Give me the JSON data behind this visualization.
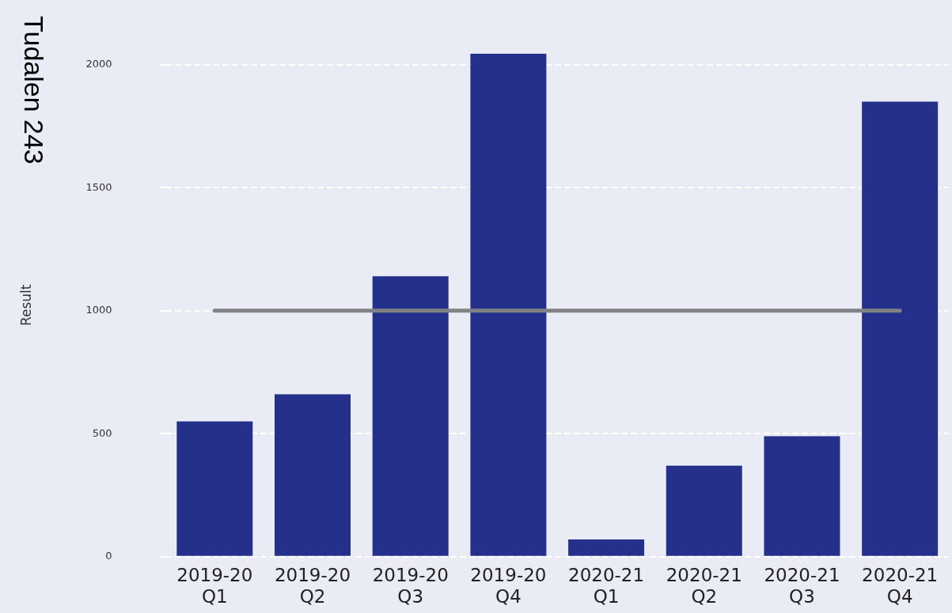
{
  "chart_data": {
    "type": "bar",
    "ylabel": "Result",
    "categories": [
      "2019-20 Q1",
      "2019-20 Q2",
      "2019-20 Q3",
      "2019-20 Q4",
      "2020-21 Q1",
      "2020-21 Q2",
      "2020-21 Q3",
      "2020-21 Q4"
    ],
    "values": [
      550,
      660,
      1140,
      2045,
      70,
      370,
      490,
      1850
    ],
    "color": "#25308a",
    "ylim": [
      0,
      2045
    ],
    "yticks": [
      0,
      500,
      1000,
      1500,
      2000
    ],
    "grid": "y",
    "legend": false,
    "ref_lines": [
      {
        "axis": "y",
        "value": 1000,
        "color": "#808285"
      }
    ],
    "annotations": [
      "Tudalen 243"
    ]
  }
}
